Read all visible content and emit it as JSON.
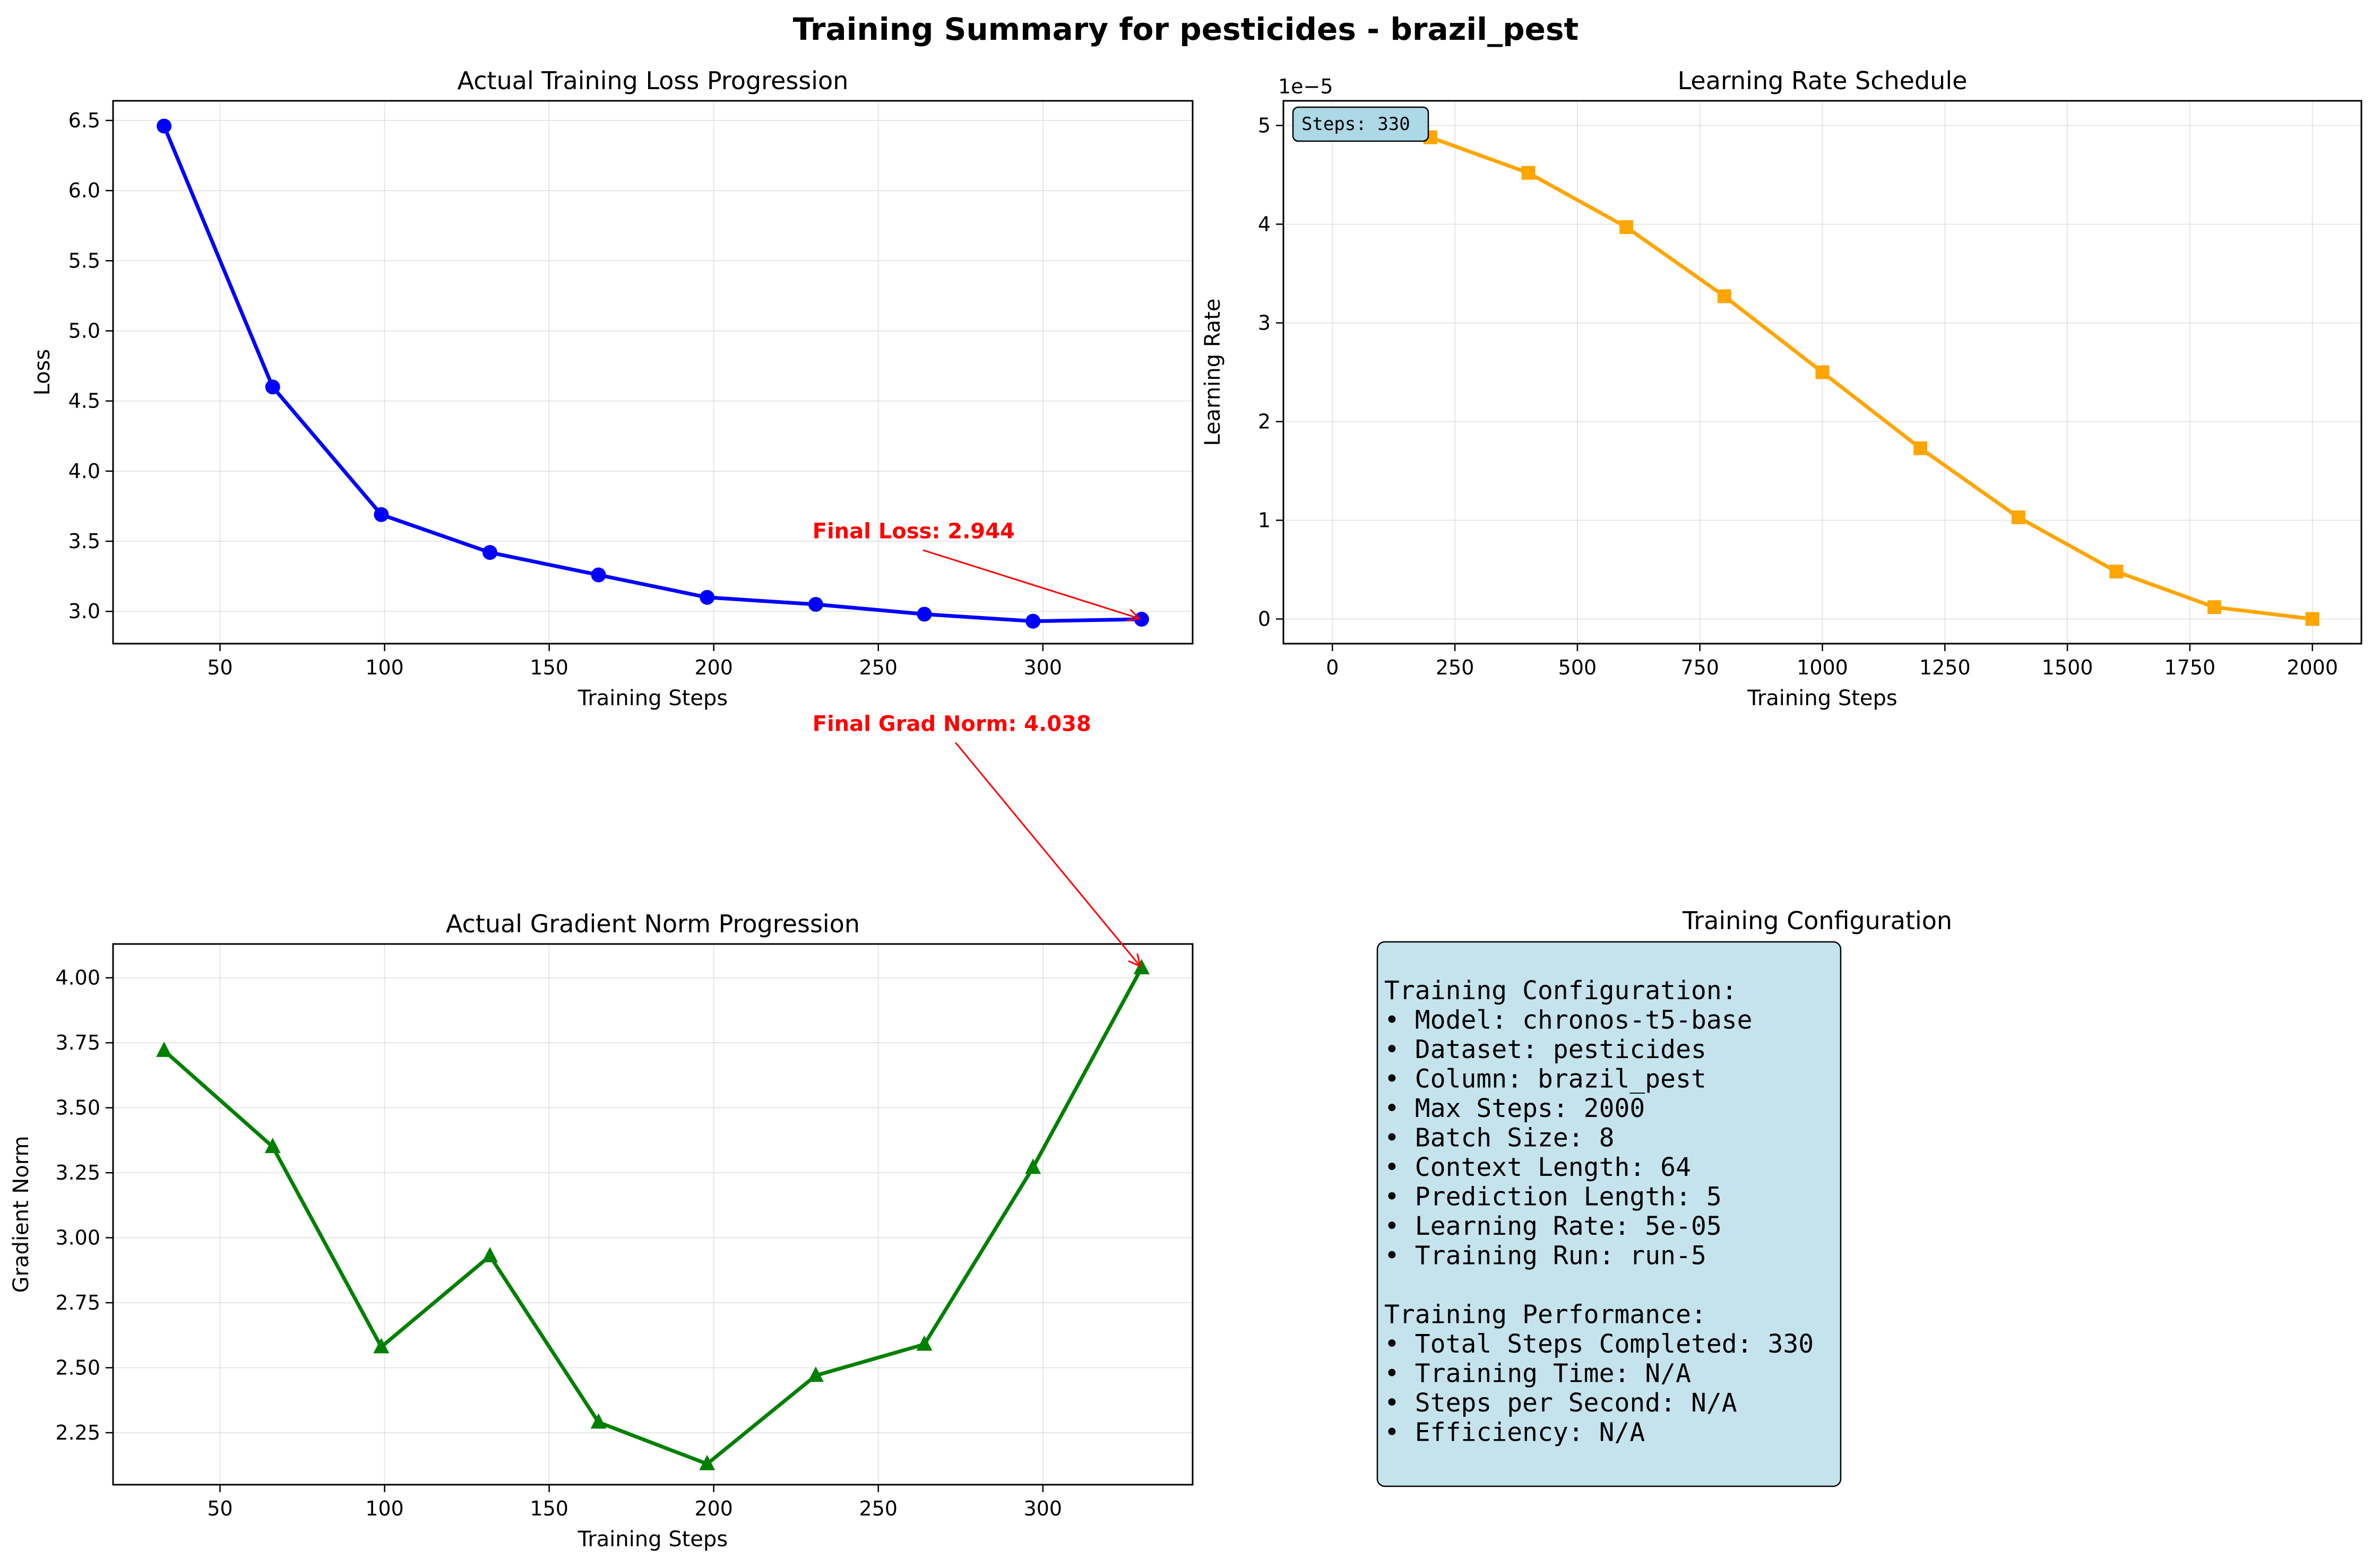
{
  "figure": {
    "title": "Training Summary for pesticides - brazil_pest"
  },
  "colors": {
    "loss": "#0000ff",
    "lr": "#ffa500",
    "grad": "#008000",
    "annotation": "#ff0000",
    "config_box": "#add8e6",
    "steps_badge": "#add8e6"
  },
  "chart_data": [
    {
      "type": "line",
      "title": "Actual Training Loss Progression",
      "xlabel": "Training Steps",
      "ylabel": "Loss",
      "marker": "circle",
      "x": [
        33,
        66,
        99,
        132,
        165,
        198,
        231,
        264,
        297,
        330
      ],
      "series": [
        {
          "values": [
            6.46,
            4.6,
            3.69,
            3.42,
            3.26,
            3.1,
            3.05,
            2.98,
            2.93,
            2.944
          ]
        }
      ],
      "xlim": [
        17.5,
        345.5
      ],
      "ylim": [
        2.77,
        6.64
      ],
      "xticks": [
        50,
        100,
        150,
        200,
        250,
        300
      ],
      "yticks": [
        3.0,
        3.5,
        4.0,
        4.5,
        5.0,
        5.5,
        6.0,
        6.5
      ],
      "grid": true,
      "annotation": {
        "text": "Final Loss: 2.944",
        "x": 330,
        "y": 2.944,
        "text_x": 230,
        "text_y": 3.52
      }
    },
    {
      "type": "line",
      "title": "Learning Rate Schedule",
      "xlabel": "Training Steps",
      "ylabel": "Learning Rate",
      "marker": "square",
      "y_offset_label": "1e−5",
      "x": [
        0,
        200,
        400,
        600,
        800,
        1000,
        1200,
        1400,
        1600,
        1800,
        2000
      ],
      "series": [
        {
          "values": [
            5.0,
            4.88,
            4.52,
            3.97,
            3.27,
            2.5,
            1.73,
            1.03,
            0.48,
            0.12,
            0.0
          ]
        }
      ],
      "xlim": [
        -100,
        2100
      ],
      "ylim": [
        -0.25,
        5.25
      ],
      "xticks": [
        0,
        250,
        500,
        750,
        1000,
        1250,
        1500,
        1750,
        2000
      ],
      "yticks": [
        0,
        1,
        2,
        3,
        4,
        5
      ],
      "grid": true,
      "badge": "Steps: 330"
    },
    {
      "type": "line",
      "title": "Actual Gradient Norm Progression",
      "xlabel": "Training Steps",
      "ylabel": "Gradient Norm",
      "marker": "triangle",
      "x": [
        33,
        66,
        99,
        132,
        165,
        198,
        231,
        264,
        297,
        330
      ],
      "series": [
        {
          "values": [
            3.72,
            3.35,
            2.58,
            2.93,
            2.29,
            2.13,
            2.47,
            2.59,
            3.27,
            4.038
          ]
        }
      ],
      "xlim": [
        17.5,
        345.5
      ],
      "ylim": [
        2.05,
        4.13
      ],
      "xticks": [
        50,
        100,
        150,
        200,
        250,
        300
      ],
      "yticks": [
        2.25,
        2.5,
        2.75,
        3.0,
        3.25,
        3.5,
        3.75,
        4.0
      ],
      "grid": true,
      "annotation": {
        "text": "Final Grad Norm: 4.038",
        "x": 330,
        "y": 4.038,
        "text_x": 230,
        "text_y": 4.95
      }
    },
    {
      "type": "table",
      "title": "Training Configuration",
      "lines": [
        "Training Configuration:",
        "• Model: chronos-t5-base",
        "• Dataset: pesticides",
        "• Column: brazil_pest",
        "• Max Steps: 2000",
        "• Batch Size: 8",
        "• Context Length: 64",
        "• Prediction Length: 5",
        "• Learning Rate: 5e-05",
        "• Training Run: run-5",
        "",
        "Training Performance:",
        "• Total Steps Completed: 330",
        "• Training Time: N/A",
        "• Steps per Second: N/A",
        "• Efficiency: N/A"
      ]
    }
  ]
}
